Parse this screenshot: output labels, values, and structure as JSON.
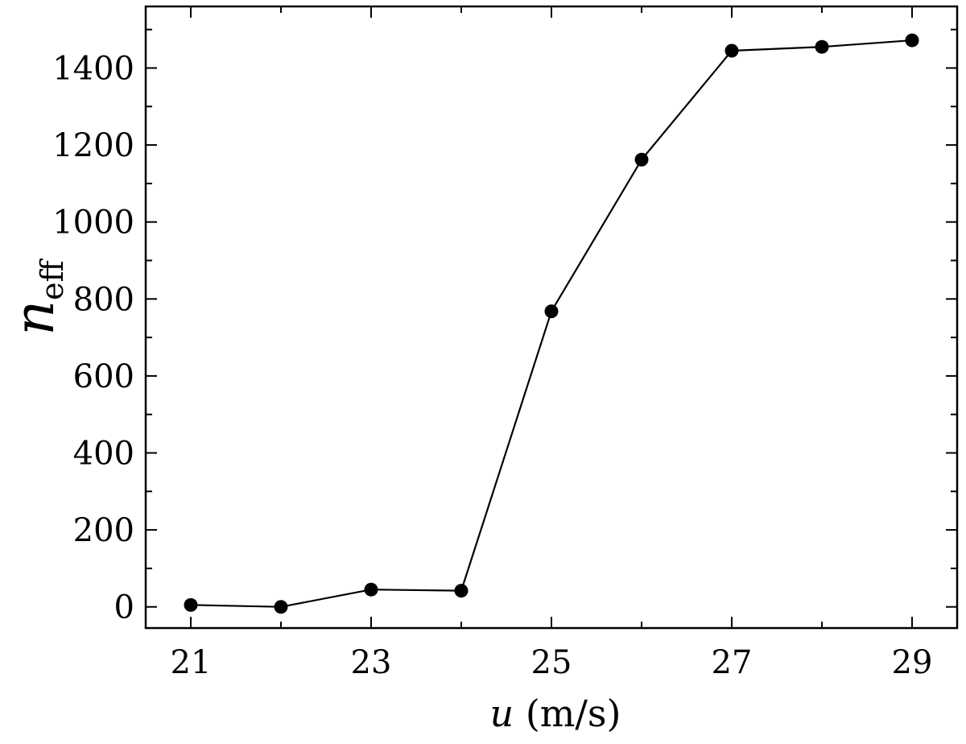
{
  "chart_data": {
    "type": "line",
    "x": [
      21,
      22,
      23,
      24,
      25,
      26,
      27,
      28,
      29
    ],
    "series": [
      {
        "values": [
          5,
          0,
          45,
          42,
          768,
          1162,
          1445,
          1455,
          1472
        ]
      }
    ],
    "xlabel_var": "u",
    "xlabel_unit": "(m/s)",
    "ylabel_var": "n",
    "ylabel_sub": "eff",
    "xlim": [
      20.5,
      29.5
    ],
    "ylim": [
      -55,
      1560
    ],
    "xticks_major": [
      21,
      23,
      25,
      27,
      29
    ],
    "xticks_minor": [
      22,
      24,
      26,
      28
    ],
    "xtick_labels": [
      "21",
      "23",
      "25",
      "27",
      "29"
    ],
    "yticks_major": [
      0,
      200,
      400,
      600,
      800,
      1000,
      1200,
      1400
    ],
    "ytick_labels": [
      "0",
      "200",
      "400",
      "600",
      "800",
      "1000",
      "1200",
      "1400"
    ],
    "grid": false,
    "colors": {
      "line": "#000000",
      "marker": "#000000"
    }
  }
}
